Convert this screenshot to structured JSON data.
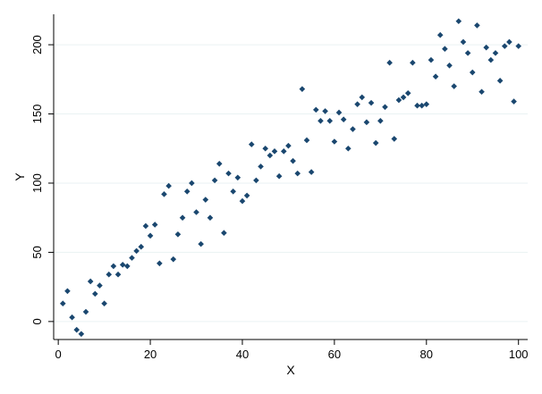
{
  "chart_data": {
    "type": "scatter",
    "title": "",
    "xlabel": "X",
    "ylabel": "Y",
    "xlim": [
      -1,
      102
    ],
    "ylim": [
      -13,
      222
    ],
    "xticks": [
      0,
      20,
      40,
      60,
      80,
      100
    ],
    "xtick_labels": [
      "0",
      "20",
      "40",
      "60",
      "80",
      "100"
    ],
    "yticks": [
      0,
      50,
      100,
      150,
      200
    ],
    "ytick_labels": [
      "0",
      "50",
      "100",
      "150",
      "200"
    ],
    "grid": true,
    "legend": "none",
    "marker_color": "#1a476f",
    "grid_color": "#eaf2f3",
    "series": [
      {
        "x": [
          1,
          2,
          3,
          4,
          5,
          6,
          7,
          8,
          9,
          10,
          11,
          12,
          13,
          14,
          15,
          16,
          17,
          18,
          19,
          20,
          21,
          22,
          23,
          24,
          25,
          26,
          27,
          28,
          29,
          30,
          31,
          32,
          33,
          34,
          35,
          36,
          37,
          38,
          39,
          40,
          41,
          42,
          43,
          44,
          45,
          46,
          47,
          48,
          49,
          50,
          51,
          52,
          53,
          54,
          55,
          56,
          57,
          58,
          59,
          60,
          61,
          62,
          63,
          64,
          65,
          66,
          67,
          68,
          69,
          70,
          71,
          72,
          73,
          74,
          75,
          76,
          77,
          78,
          79,
          80,
          81,
          82,
          83,
          84,
          85,
          86,
          87,
          88,
          89,
          90,
          91,
          92,
          93,
          94,
          95,
          96,
          97,
          98,
          99,
          100
        ],
        "y": [
          13,
          22,
          3,
          -6,
          -9,
          7,
          29,
          20,
          26,
          13,
          34,
          40,
          34,
          41,
          40,
          46,
          51,
          54,
          69,
          62,
          70,
          42,
          92,
          98,
          45,
          63,
          75,
          94,
          100,
          79,
          56,
          88,
          75,
          102,
          114,
          64,
          107,
          94,
          104,
          87,
          91,
          128,
          102,
          112,
          125,
          120,
          123,
          105,
          123,
          127,
          116,
          107,
          168,
          131,
          108,
          153,
          145,
          152,
          145,
          130,
          151,
          146,
          125,
          139,
          157,
          162,
          144,
          158,
          129,
          145,
          155,
          187,
          132,
          160,
          162,
          165,
          187,
          156,
          156,
          157,
          189,
          177,
          207,
          197,
          185,
          170,
          217,
          202,
          194,
          180,
          214,
          166,
          198,
          189,
          194,
          174,
          199,
          202,
          159,
          199
        ]
      }
    ]
  }
}
